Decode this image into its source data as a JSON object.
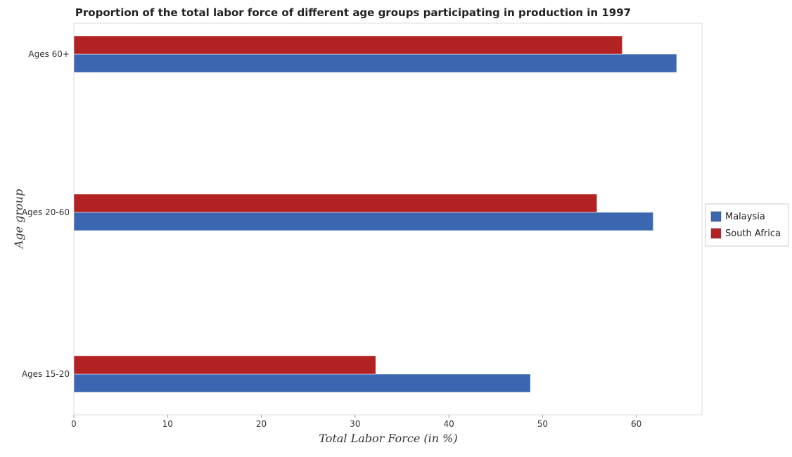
{
  "chart_data": {
    "type": "bar",
    "orientation": "horizontal",
    "title": "Proportion of the total labor force of different age groups participating in production in 1997",
    "xlabel": "Total Labor Force (in %)",
    "ylabel": "Age group",
    "categories": [
      "Ages 15-20",
      "Ages 20-60",
      "Ages 60+"
    ],
    "series": [
      {
        "name": "Malaysia",
        "values": [
          48.7,
          61.8,
          64.3
        ],
        "color": "#3a67b0"
      },
      {
        "name": "South Africa",
        "values": [
          32.2,
          55.8,
          58.5
        ],
        "color": "#b22222"
      }
    ],
    "xlim": [
      0,
      67
    ],
    "xticks": [
      0,
      10,
      20,
      30,
      40,
      50,
      60
    ],
    "grid": false,
    "legend_position": "right"
  }
}
